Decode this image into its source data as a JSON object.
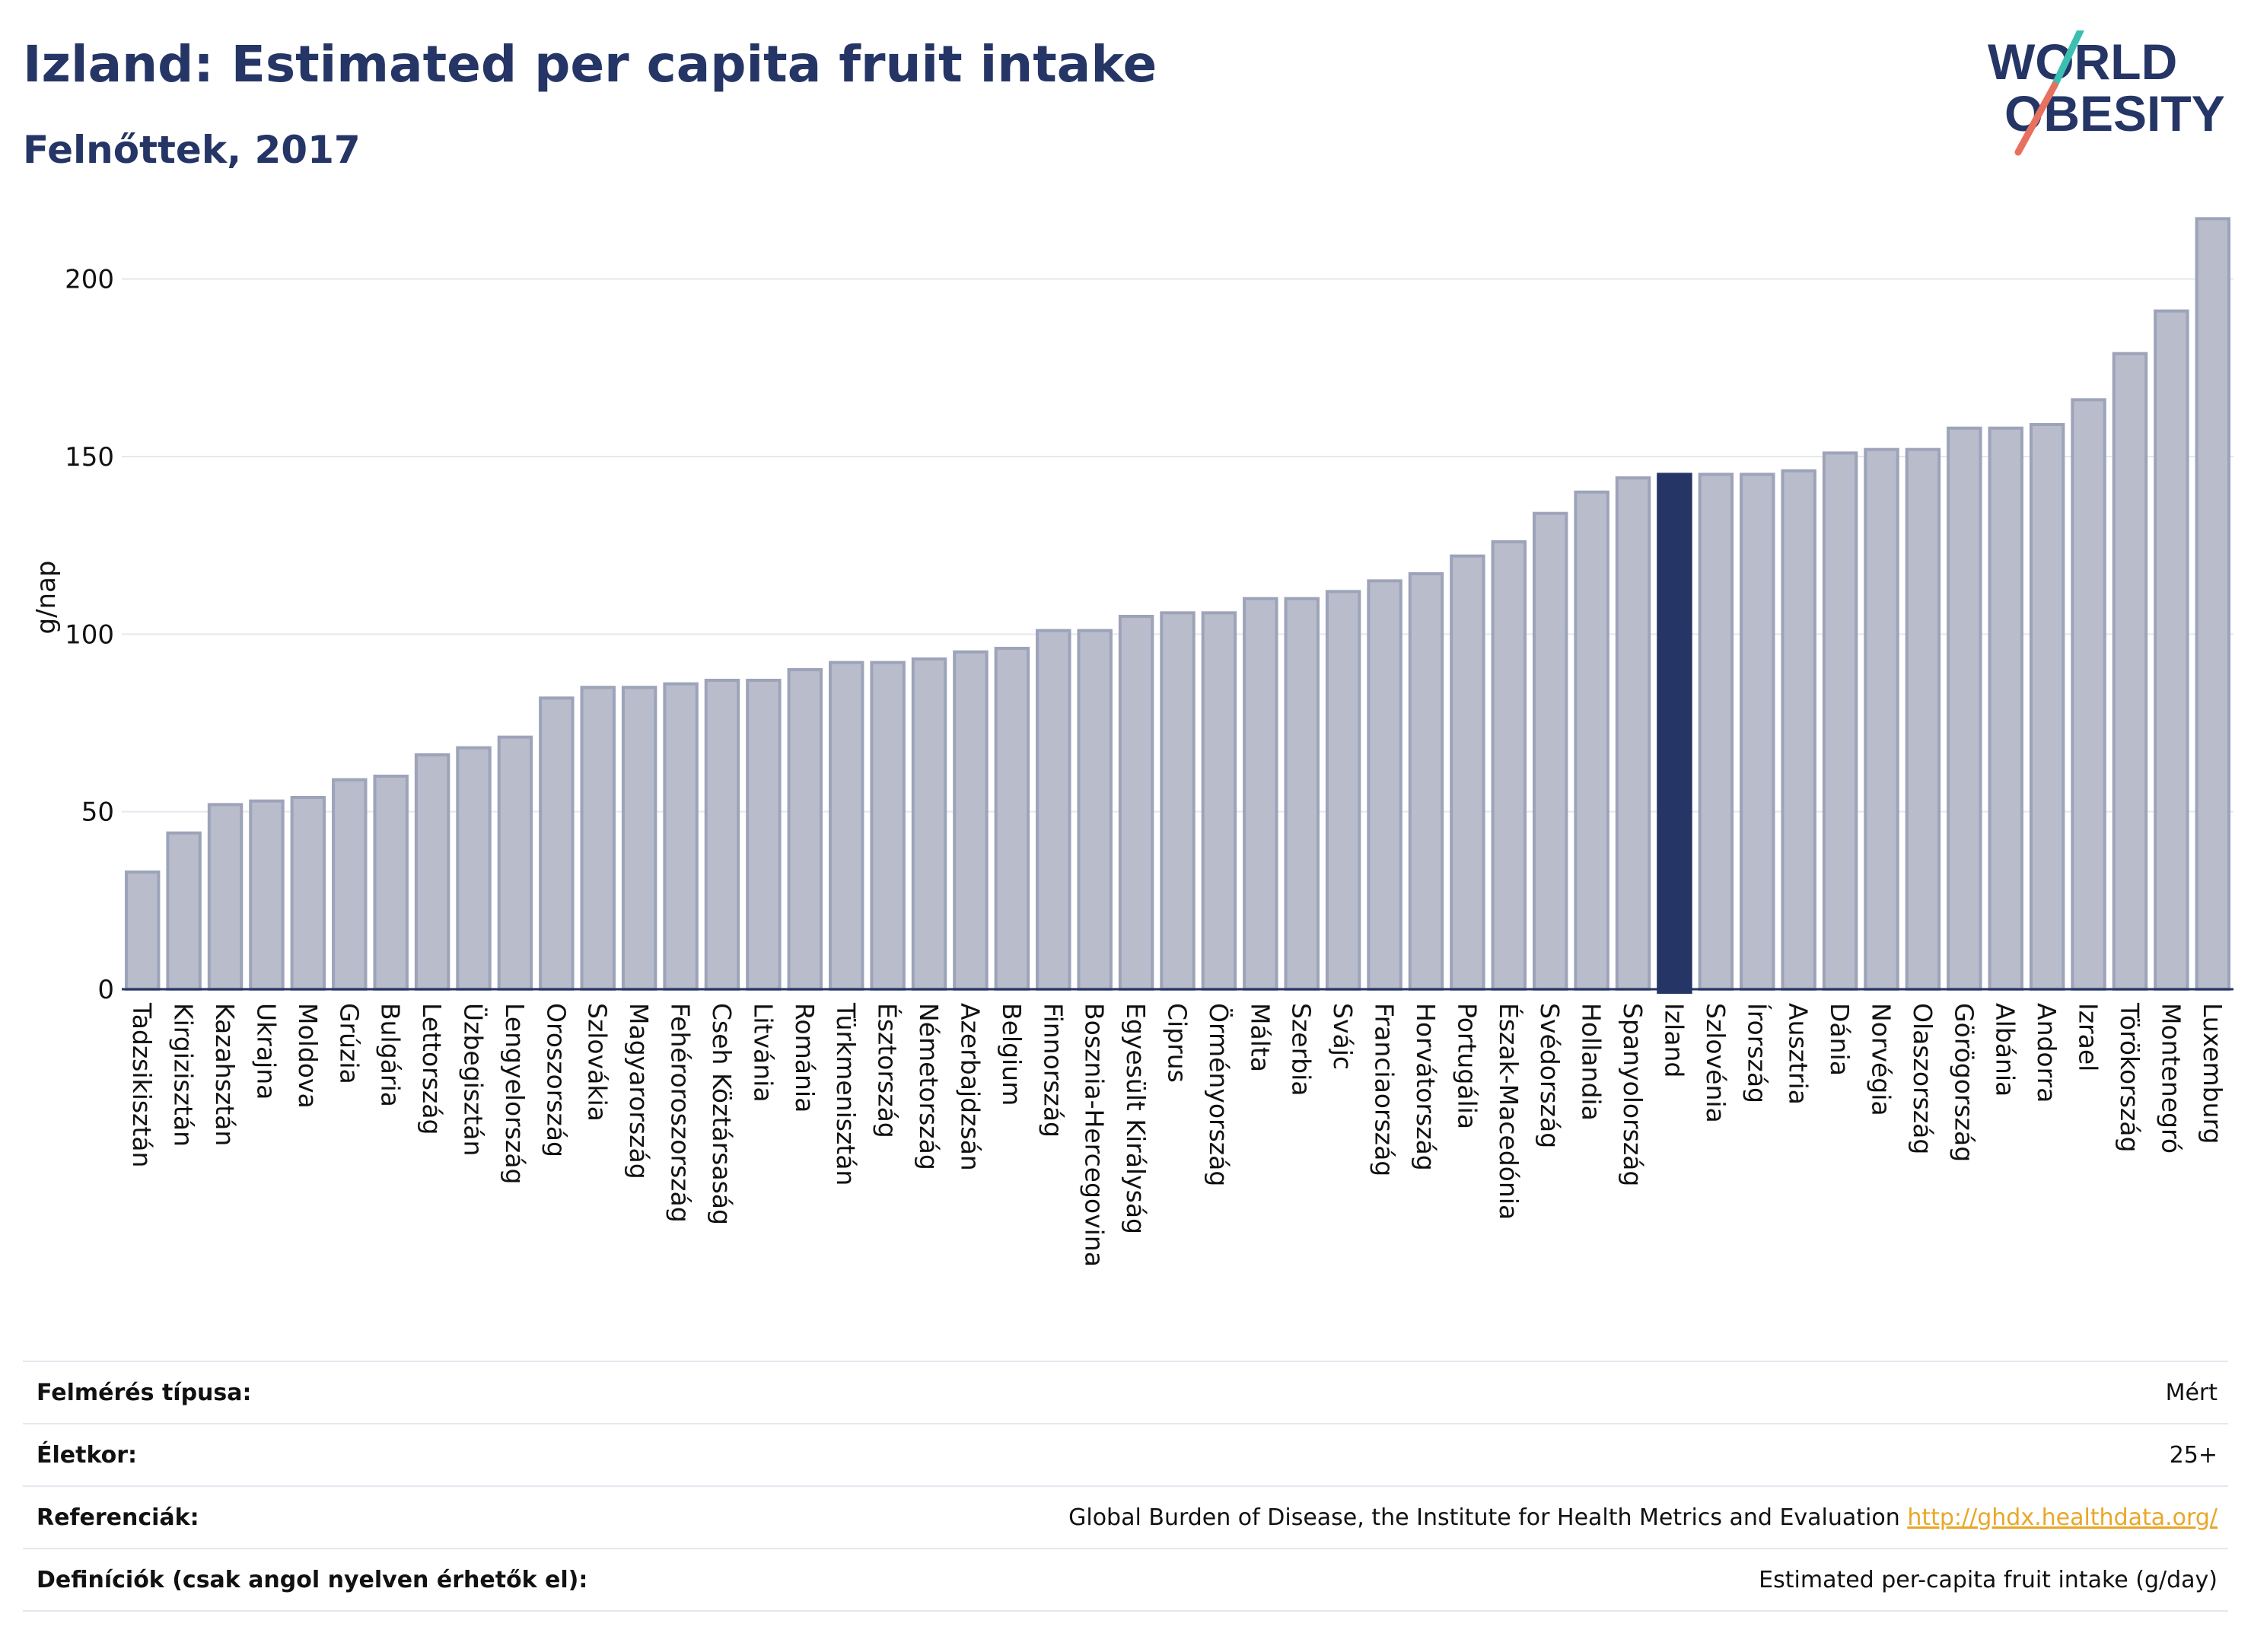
{
  "header": {
    "title": "Izland: Estimated per capita fruit intake",
    "subtitle": "Felnőttek, 2017"
  },
  "logo": {
    "line1": "WORLD",
    "line2": "OBESITY"
  },
  "colors": {
    "bar": "#b8bccb",
    "bar_stroke": "#9da3b9",
    "highlight": "#253565",
    "grid": "#e6e8ef",
    "link": "#e8a72a"
  },
  "chart_data": {
    "type": "bar",
    "title": "Izland: Estimated per capita fruit intake",
    "subtitle": "Felnőttek, 2017",
    "ylabel": "g/nap",
    "xlabel": "",
    "ylim": [
      0,
      225
    ],
    "yticks": [
      0,
      50,
      100,
      150,
      200
    ],
    "grid": true,
    "highlight": "Izland",
    "categories": [
      "Tadzsikisztán",
      "Kirgizisztán",
      "Kazahsztán",
      "Ukrajna",
      "Moldova",
      "Grúzia",
      "Bulgária",
      "Lettország",
      "Üzbegisztán",
      "Lengyelország",
      "Oroszország",
      "Szlovákia",
      "Magyarország",
      "Fehéroroszország",
      "Cseh Köztársaság",
      "Litvánia",
      "Románia",
      "Türkmenisztán",
      "Észtország",
      "Németország",
      "Azerbajdzsán",
      "Belgium",
      "Finnország",
      "Bosznia-Hercegovina",
      "Egyesült Királyság",
      "Ciprus",
      "Örményország",
      "Málta",
      "Szerbia",
      "Svájc",
      "Franciaország",
      "Horvátország",
      "Portugália",
      "Észak-Macedónia",
      "Svédország",
      "Hollandia",
      "Spanyolország",
      "Izland",
      "Szlovénia",
      "Írország",
      "Ausztria",
      "Dánia",
      "Norvégia",
      "Olaszország",
      "Görögország",
      "Albánia",
      "Andorra",
      "Izrael",
      "Törökország",
      "Montenegró",
      "Luxemburg"
    ],
    "values": [
      33,
      44,
      52,
      53,
      54,
      59,
      60,
      66,
      68,
      71,
      82,
      85,
      85,
      86,
      87,
      87,
      90,
      92,
      92,
      93,
      95,
      96,
      101,
      101,
      105,
      106,
      106,
      110,
      110,
      112,
      115,
      117,
      122,
      126,
      134,
      140,
      144,
      145,
      145,
      145,
      146,
      151,
      152,
      152,
      158,
      158,
      159,
      166,
      179,
      191,
      217
    ]
  },
  "info": {
    "rows": [
      {
        "label": "Felmérés típusa:",
        "value": "Mért"
      },
      {
        "label": "Életkor:",
        "value": "25+"
      },
      {
        "label": "Referenciák:",
        "value": "Global Burden of Disease, the Institute for Health Metrics and Evaluation",
        "link": "http://ghdx.healthdata.org/"
      },
      {
        "label": "Definíciók (csak angol nyelven érhetők el):",
        "value": "Estimated per-capita fruit intake (g/day)"
      }
    ]
  }
}
